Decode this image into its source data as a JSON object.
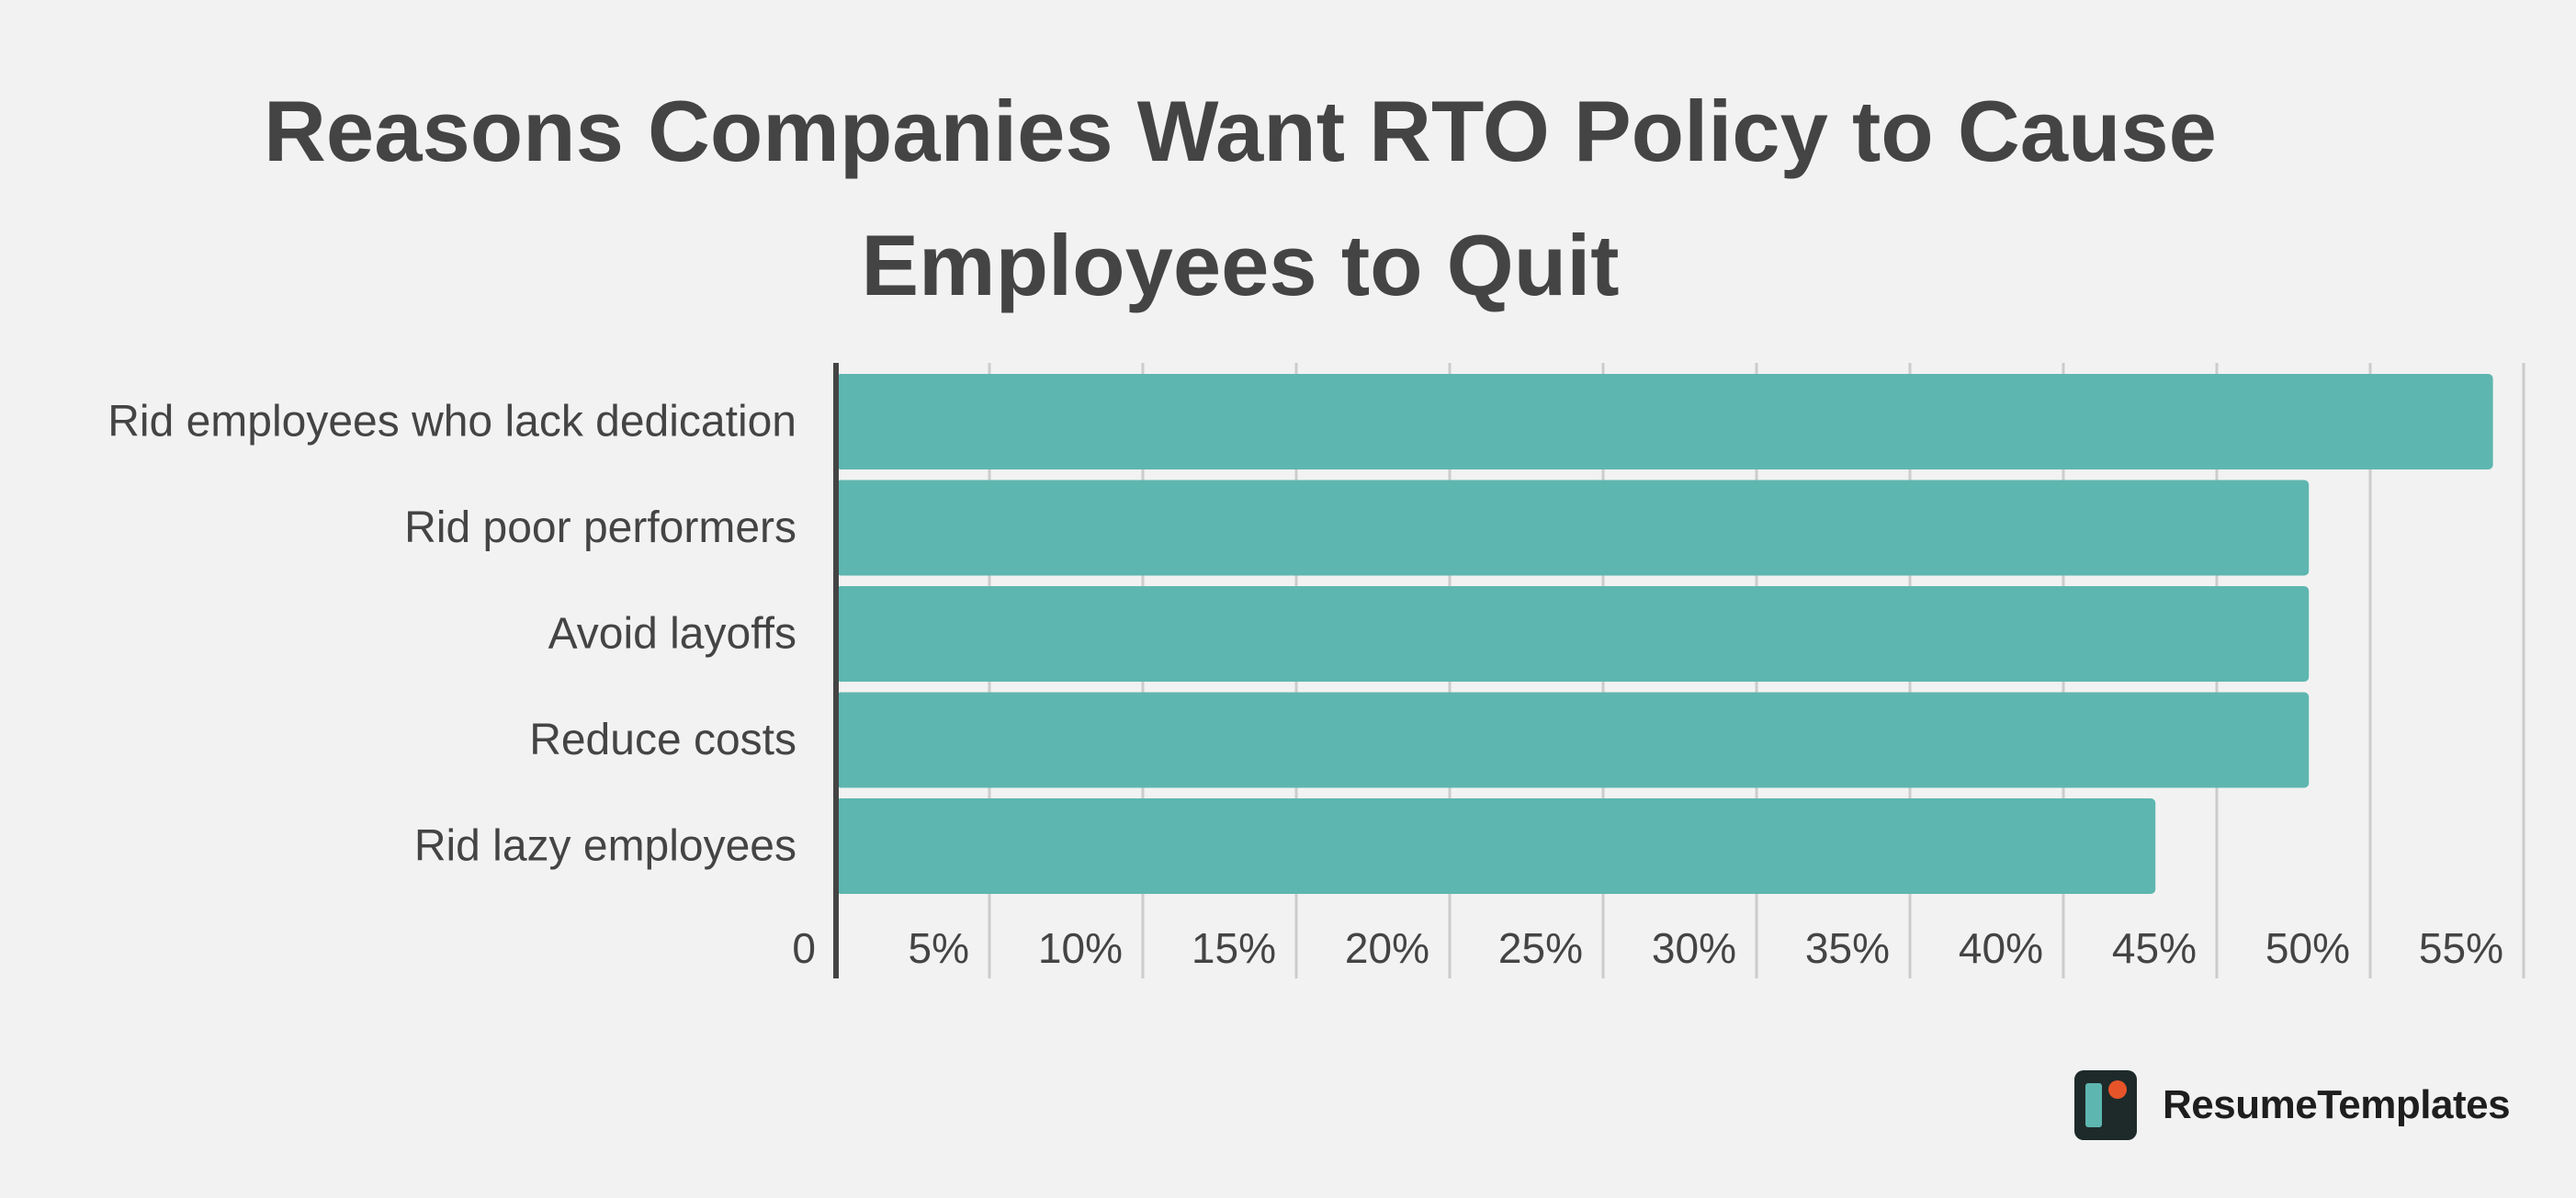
{
  "chart_data": {
    "type": "bar",
    "orientation": "horizontal",
    "title": "Reasons Companies Want RTO Policy to Cause Employees to Quit",
    "title_lines": [
      "Reasons Companies Want RTO Policy to Cause",
      "Employees to Quit"
    ],
    "categories": [
      "Rid employees who lack dedication",
      "Rid poor performers",
      "Avoid layoffs",
      "Reduce costs",
      "Rid lazy employees"
    ],
    "values": [
      54,
      48,
      48,
      48,
      43
    ],
    "xlim": [
      0,
      55
    ],
    "x_ticks": [
      0,
      5,
      10,
      15,
      20,
      25,
      30,
      35,
      40,
      45,
      50,
      55
    ],
    "x_tick_labels": [
      "0",
      "5%",
      "10%",
      "15%",
      "20%",
      "25%",
      "30%",
      "35%",
      "40%",
      "45%",
      "50%",
      "55%"
    ],
    "xlabel": "",
    "ylabel": "",
    "grid": "vertical",
    "legend": "none",
    "bar_color": "#5eb6b0",
    "axis_color": "#444444",
    "grid_color": "#cccccc",
    "label_color": "#444444"
  },
  "brand": {
    "name": "ResumeTemplates",
    "logo_bg": "#1e2a2a",
    "logo_bar": "#5eb6b0",
    "logo_dot": "#e8542a"
  }
}
